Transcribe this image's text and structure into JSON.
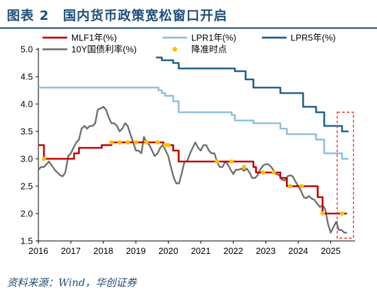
{
  "title": "图表 2　国内货币政策宽松窗口开启",
  "source": "资料来源：Wind，华创证券",
  "colors": {
    "mlf": "#c00000",
    "lpr1": "#8fbedc",
    "lpr5": "#1f5f8b",
    "bond10y": "#6e6e6e",
    "dot": "#ffc000",
    "box": "#e03030",
    "title": "#1f4e79"
  },
  "chart_data": {
    "type": "line",
    "ylim": [
      1.5,
      5.0
    ],
    "yticks": [
      "5.0",
      "4.5",
      "4.0",
      "3.5",
      "3.0",
      "2.5",
      "2.0",
      "1.5"
    ],
    "xlim": [
      2016.0,
      2025.75
    ],
    "xticks": [
      "2016",
      "2017",
      "2018",
      "2019",
      "2020",
      "2021",
      "2022",
      "2023",
      "2024",
      "2025"
    ],
    "legend": [
      "MLF1年(%)",
      "LPR1年(%)",
      "LPR5年(%)",
      "10Y国债利率(%)",
      "降准时点"
    ],
    "grid": false,
    "series": [
      {
        "name": "MLF1年(%)",
        "style": "step",
        "points": [
          [
            2016.0,
            3.25
          ],
          [
            2016.17,
            3.0
          ],
          [
            2017.1,
            3.1
          ],
          [
            2017.25,
            3.2
          ],
          [
            2017.95,
            3.25
          ],
          [
            2018.25,
            3.3
          ],
          [
            2019.3,
            3.3
          ],
          [
            2019.85,
            3.25
          ],
          [
            2020.15,
            3.15
          ],
          [
            2020.32,
            2.95
          ],
          [
            2022.62,
            2.85
          ],
          [
            2022.7,
            2.75
          ],
          [
            2023.45,
            2.65
          ],
          [
            2023.65,
            2.5
          ],
          [
            2024.25,
            2.5
          ],
          [
            2024.6,
            2.3
          ],
          [
            2024.75,
            2.0
          ],
          [
            2025.5,
            2.0
          ]
        ]
      },
      {
        "name": "LPR1年(%)",
        "style": "step",
        "points": [
          [
            2016.0,
            4.3
          ],
          [
            2019.62,
            4.3
          ],
          [
            2019.7,
            4.25
          ],
          [
            2019.8,
            4.2
          ],
          [
            2019.9,
            4.15
          ],
          [
            2020.15,
            4.05
          ],
          [
            2020.32,
            3.85
          ],
          [
            2021.95,
            3.8
          ],
          [
            2022.05,
            3.7
          ],
          [
            2022.62,
            3.65
          ],
          [
            2023.45,
            3.55
          ],
          [
            2023.65,
            3.45
          ],
          [
            2024.55,
            3.35
          ],
          [
            2024.8,
            3.1
          ],
          [
            2025.35,
            3.0
          ],
          [
            2025.55,
            3.0
          ]
        ]
      },
      {
        "name": "LPR5年(%)",
        "style": "step",
        "points": [
          [
            2019.62,
            4.85
          ],
          [
            2019.8,
            4.8
          ],
          [
            2020.15,
            4.75
          ],
          [
            2020.32,
            4.65
          ],
          [
            2022.05,
            4.6
          ],
          [
            2022.38,
            4.45
          ],
          [
            2022.62,
            4.3
          ],
          [
            2023.45,
            4.2
          ],
          [
            2024.15,
            3.95
          ],
          [
            2024.55,
            3.85
          ],
          [
            2024.8,
            3.6
          ],
          [
            2025.35,
            3.5
          ],
          [
            2025.55,
            3.5
          ]
        ]
      },
      {
        "name": "10Y国债利率(%)",
        "style": "line",
        "points": [
          [
            2016.0,
            2.8
          ],
          [
            2016.08,
            2.85
          ],
          [
            2016.17,
            2.85
          ],
          [
            2016.33,
            2.95
          ],
          [
            2016.5,
            2.8
          ],
          [
            2016.67,
            2.7
          ],
          [
            2016.75,
            2.68
          ],
          [
            2016.83,
            2.75
          ],
          [
            2016.92,
            3.05
          ],
          [
            2017.0,
            3.1
          ],
          [
            2017.08,
            3.2
          ],
          [
            2017.17,
            3.3
          ],
          [
            2017.25,
            3.35
          ],
          [
            2017.33,
            3.55
          ],
          [
            2017.42,
            3.6
          ],
          [
            2017.5,
            3.55
          ],
          [
            2017.58,
            3.6
          ],
          [
            2017.67,
            3.6
          ],
          [
            2017.75,
            3.65
          ],
          [
            2017.83,
            3.9
          ],
          [
            2017.92,
            3.92
          ],
          [
            2018.0,
            3.95
          ],
          [
            2018.08,
            3.9
          ],
          [
            2018.17,
            3.75
          ],
          [
            2018.25,
            3.65
          ],
          [
            2018.33,
            3.65
          ],
          [
            2018.42,
            3.6
          ],
          [
            2018.5,
            3.5
          ],
          [
            2018.58,
            3.55
          ],
          [
            2018.67,
            3.65
          ],
          [
            2018.75,
            3.6
          ],
          [
            2018.83,
            3.45
          ],
          [
            2018.92,
            3.3
          ],
          [
            2019.0,
            3.15
          ],
          [
            2019.08,
            3.15
          ],
          [
            2019.17,
            3.1
          ],
          [
            2019.25,
            3.4
          ],
          [
            2019.33,
            3.3
          ],
          [
            2019.42,
            3.25
          ],
          [
            2019.5,
            3.15
          ],
          [
            2019.58,
            3.05
          ],
          [
            2019.67,
            3.1
          ],
          [
            2019.75,
            3.2
          ],
          [
            2019.83,
            3.25
          ],
          [
            2019.92,
            3.15
          ],
          [
            2020.0,
            3.05
          ],
          [
            2020.08,
            2.85
          ],
          [
            2020.17,
            2.65
          ],
          [
            2020.25,
            2.55
          ],
          [
            2020.33,
            2.55
          ],
          [
            2020.42,
            2.75
          ],
          [
            2020.5,
            2.95
          ],
          [
            2020.58,
            2.95
          ],
          [
            2020.67,
            3.1
          ],
          [
            2020.75,
            3.2
          ],
          [
            2020.83,
            3.3
          ],
          [
            2020.92,
            3.2
          ],
          [
            2021.0,
            3.15
          ],
          [
            2021.08,
            3.25
          ],
          [
            2021.17,
            3.25
          ],
          [
            2021.25,
            3.15
          ],
          [
            2021.33,
            3.1
          ],
          [
            2021.42,
            3.1
          ],
          [
            2021.5,
            2.95
          ],
          [
            2021.58,
            2.85
          ],
          [
            2021.67,
            2.85
          ],
          [
            2021.75,
            2.95
          ],
          [
            2021.83,
            2.9
          ],
          [
            2021.92,
            2.8
          ],
          [
            2022.0,
            2.72
          ],
          [
            2022.08,
            2.8
          ],
          [
            2022.17,
            2.8
          ],
          [
            2022.25,
            2.82
          ],
          [
            2022.33,
            2.78
          ],
          [
            2022.42,
            2.82
          ],
          [
            2022.5,
            2.75
          ],
          [
            2022.58,
            2.65
          ],
          [
            2022.67,
            2.65
          ],
          [
            2022.75,
            2.7
          ],
          [
            2022.83,
            2.8
          ],
          [
            2022.92,
            2.88
          ],
          [
            2023.0,
            2.9
          ],
          [
            2023.08,
            2.9
          ],
          [
            2023.17,
            2.85
          ],
          [
            2023.25,
            2.78
          ],
          [
            2023.33,
            2.72
          ],
          [
            2023.42,
            2.7
          ],
          [
            2023.5,
            2.62
          ],
          [
            2023.58,
            2.6
          ],
          [
            2023.67,
            2.68
          ],
          [
            2023.75,
            2.7
          ],
          [
            2023.83,
            2.68
          ],
          [
            2023.92,
            2.58
          ],
          [
            2024.0,
            2.5
          ],
          [
            2024.08,
            2.42
          ],
          [
            2024.17,
            2.3
          ],
          [
            2024.25,
            2.28
          ],
          [
            2024.33,
            2.32
          ],
          [
            2024.42,
            2.27
          ],
          [
            2024.5,
            2.25
          ],
          [
            2024.58,
            2.18
          ],
          [
            2024.67,
            2.12
          ],
          [
            2024.75,
            2.15
          ],
          [
            2024.83,
            2.08
          ],
          [
            2024.92,
            1.8
          ],
          [
            2025.0,
            1.65
          ],
          [
            2025.08,
            1.75
          ],
          [
            2025.17,
            1.85
          ],
          [
            2025.25,
            1.7
          ],
          [
            2025.33,
            1.7
          ],
          [
            2025.42,
            1.65
          ],
          [
            2025.5,
            1.65
          ]
        ]
      }
    ],
    "rrr_cut_points": [
      [
        2016.17,
        3.0
      ],
      [
        2018.25,
        3.3
      ],
      [
        2018.5,
        3.3
      ],
      [
        2018.75,
        3.3
      ],
      [
        2019.0,
        3.3
      ],
      [
        2019.33,
        3.3
      ],
      [
        2019.67,
        3.3
      ],
      [
        2019.9,
        3.25
      ],
      [
        2020.0,
        3.25
      ],
      [
        2021.5,
        2.95
      ],
      [
        2021.95,
        2.95
      ],
      [
        2022.33,
        2.85
      ],
      [
        2022.92,
        2.75
      ],
      [
        2023.25,
        2.75
      ],
      [
        2023.75,
        2.5
      ],
      [
        2024.1,
        2.5
      ],
      [
        2024.75,
        2.0
      ],
      [
        2025.35,
        2.0
      ]
    ],
    "highlight_box": {
      "x": [
        2025.2,
        2025.7
      ],
      "y": [
        1.55,
        3.85
      ],
      "style": "dashed"
    }
  }
}
